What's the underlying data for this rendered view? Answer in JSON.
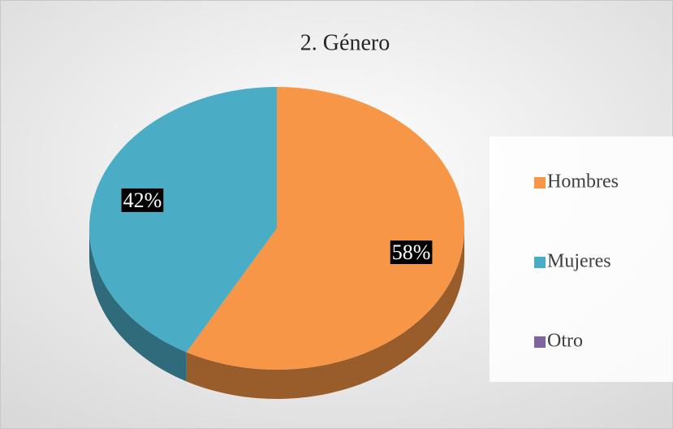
{
  "chart_data": {
    "type": "pie",
    "title": "2. Género",
    "categories": [
      "Hombres",
      "Mujeres",
      "Otro"
    ],
    "values": [
      58,
      42,
      0
    ],
    "value_labels": [
      "58%",
      "42%",
      null
    ],
    "colors": [
      "#f79646",
      "#4bacc6",
      "#8064a2"
    ],
    "legend": "right"
  }
}
